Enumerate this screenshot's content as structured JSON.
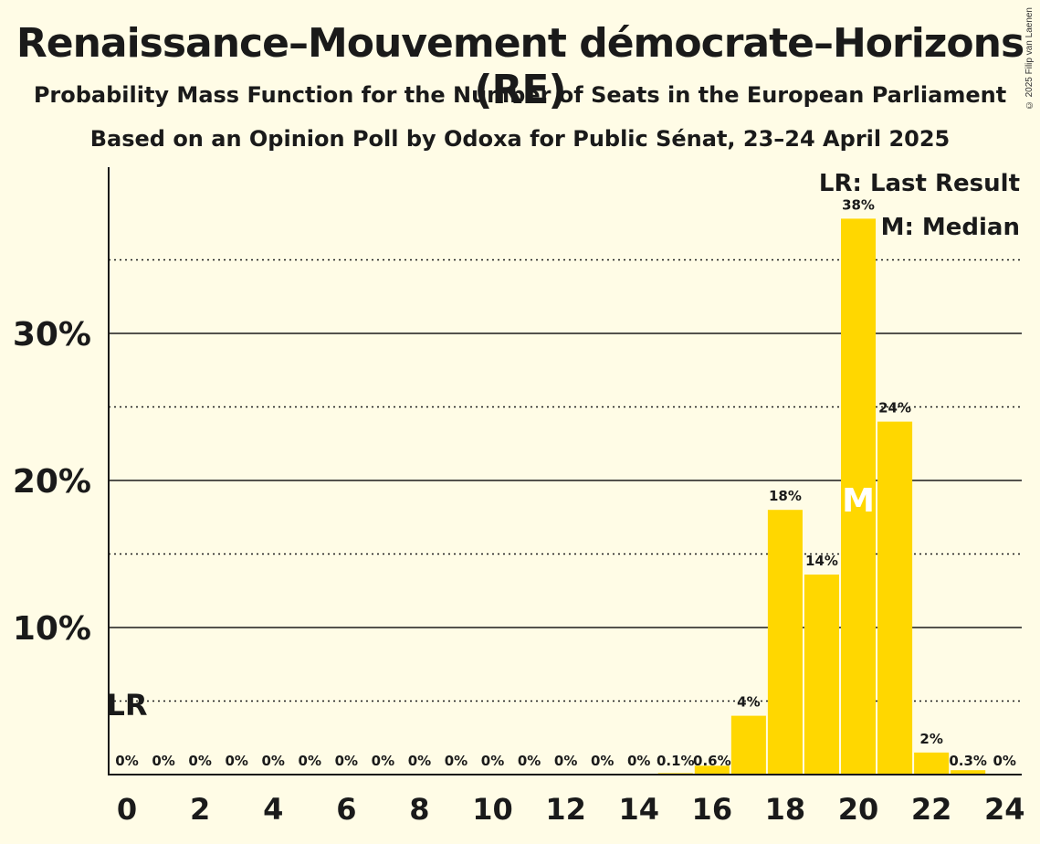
{
  "title": "Renaissance–Mouvement démocrate–Horizons (RE)",
  "subtitle1": "Probability Mass Function for the Number of Seats in the European Parliament",
  "subtitle2": "Based on an Opinion Poll by Odoxa for Public Sénat, 23–24 April 2025",
  "copyright": "© 2025 Filip van Laenen",
  "legend": {
    "lr": "LR: Last Result",
    "m": "M: Median"
  },
  "colors": {
    "bar": "#ffd700",
    "background": "#fffce6",
    "text": "#1a1a1a"
  },
  "chart_data": {
    "type": "bar",
    "categories": [
      0,
      1,
      2,
      3,
      4,
      5,
      6,
      7,
      8,
      9,
      10,
      11,
      12,
      13,
      14,
      15,
      16,
      17,
      18,
      19,
      20,
      21,
      22,
      23,
      24
    ],
    "values": [
      0,
      0,
      0,
      0,
      0,
      0,
      0,
      0,
      0,
      0,
      0,
      0,
      0,
      0,
      0,
      0.1,
      0.6,
      4,
      18,
      13.6,
      37.8,
      24,
      1.5,
      0.3,
      0
    ],
    "labels": [
      "0%",
      "0%",
      "0%",
      "0%",
      "0%",
      "0%",
      "0%",
      "0%",
      "0%",
      "0%",
      "0%",
      "0%",
      "0%",
      "0%",
      "0%",
      "0.1%",
      "0.6%",
      "4%",
      "18%",
      "14%",
      "38%",
      "24%",
      "2%",
      "0.3%",
      "0%"
    ],
    "x_tick_labels": [
      "0",
      "2",
      "4",
      "6",
      "8",
      "10",
      "12",
      "14",
      "16",
      "18",
      "20",
      "22",
      "24"
    ],
    "y_tick_labels": [
      "10%",
      "20%",
      "30%"
    ],
    "y_ticks": [
      10,
      20,
      30
    ],
    "y_minor_ticks": [
      5,
      15,
      25,
      35
    ],
    "ylim": [
      0,
      41.3
    ],
    "last_result_seat": 0,
    "last_result_marker": "LR",
    "median_seat": 20,
    "median_marker": "M",
    "legend_position": "top-right"
  }
}
